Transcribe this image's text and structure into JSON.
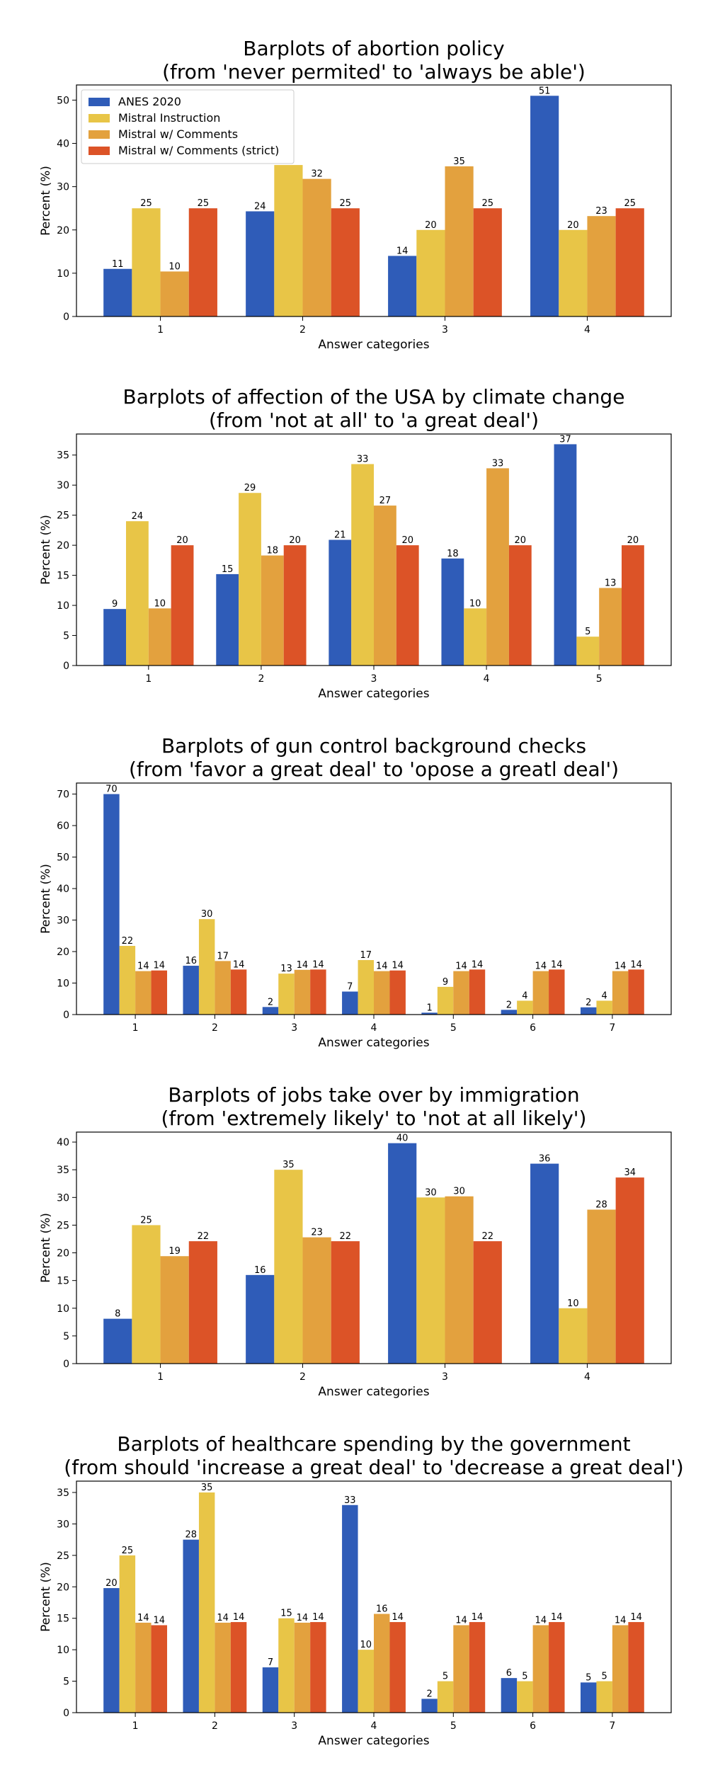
{
  "colors": {
    "ANES 2020": "#2f5cb8",
    "Mistral Instruction": "#e8c547",
    "Mistral w/ Comments": "#e3a13e",
    "Mistral w/ Comments (strict)": "#dc5327"
  },
  "legend_labels": [
    "ANES 2020",
    "Mistral Instruction",
    "Mistral w/ Comments",
    "Mistral w/ Comments (strict)"
  ],
  "chart_data": [
    {
      "type": "bar",
      "title": [
        "Barplots of abortion policy",
        "(from 'never permited' to 'always be able')"
      ],
      "xlabel": "Answer categories",
      "ylabel": "Percent (%)",
      "categories": [
        "1",
        "2",
        "3",
        "4"
      ],
      "ylim": [
        0,
        53.5
      ],
      "yticks": [
        0,
        10,
        20,
        30,
        40,
        50
      ],
      "legend": "upper-left",
      "series": [
        {
          "name": "ANES 2020",
          "values": [
            11,
            24.3,
            14,
            51
          ],
          "labels": [
            "11",
            "24",
            "14",
            "51"
          ]
        },
        {
          "name": "Mistral Instruction",
          "values": [
            25,
            35,
            20,
            20
          ],
          "labels": [
            "25",
            "35",
            "20",
            "20"
          ]
        },
        {
          "name": "Mistral w/ Comments",
          "values": [
            10.4,
            31.8,
            34.7,
            23.2
          ],
          "labels": [
            "10",
            "32",
            "35",
            "23"
          ]
        },
        {
          "name": "Mistral w/ Comments (strict)",
          "values": [
            25,
            25,
            25,
            25
          ],
          "labels": [
            "25",
            "25",
            "25",
            "25"
          ]
        }
      ]
    },
    {
      "type": "bar",
      "title": [
        "Barplots of affection of the USA by climate change",
        "(from 'not at all' to 'a great deal')"
      ],
      "xlabel": "Answer categories",
      "ylabel": "Percent (%)",
      "categories": [
        "1",
        "2",
        "3",
        "4",
        "5"
      ],
      "ylim": [
        0,
        38.5
      ],
      "yticks": [
        0,
        5,
        10,
        15,
        20,
        25,
        30,
        35
      ],
      "series": [
        {
          "name": "ANES 2020",
          "values": [
            9.4,
            15.2,
            20.9,
            17.8,
            36.8
          ],
          "labels": [
            "9",
            "15",
            "21",
            "18",
            "37"
          ]
        },
        {
          "name": "Mistral Instruction",
          "values": [
            24,
            28.7,
            33.5,
            9.5,
            4.8
          ],
          "labels": [
            "24",
            "29",
            "33",
            "10",
            "5"
          ]
        },
        {
          "name": "Mistral w/ Comments",
          "values": [
            9.5,
            18.3,
            26.6,
            32.8,
            12.9
          ],
          "labels": [
            "10",
            "18",
            "27",
            "33",
            "13"
          ]
        },
        {
          "name": "Mistral w/ Comments (strict)",
          "values": [
            20,
            20,
            20,
            20,
            20
          ],
          "labels": [
            "20",
            "20",
            "20",
            "20",
            "20"
          ]
        }
      ]
    },
    {
      "type": "bar",
      "title": [
        "Barplots of gun control background checks",
        "(from 'favor a great deal' to 'opose a greatl deal')"
      ],
      "xlabel": "Answer categories",
      "ylabel": "Percent (%)",
      "categories": [
        "1",
        "2",
        "3",
        "4",
        "5",
        "6",
        "7"
      ],
      "ylim": [
        0,
        73.5
      ],
      "yticks": [
        0,
        10,
        20,
        30,
        40,
        50,
        60,
        70
      ],
      "series": [
        {
          "name": "ANES 2020",
          "values": [
            70,
            15.5,
            2.4,
            7.3,
            0.6,
            1.5,
            2.3
          ],
          "labels": [
            "70",
            "16",
            "2",
            "7",
            "1",
            "2",
            "2"
          ]
        },
        {
          "name": "Mistral Instruction",
          "values": [
            21.8,
            30.3,
            13,
            17.3,
            8.8,
            4.4,
            4.4
          ],
          "labels": [
            "22",
            "30",
            "13",
            "17",
            "9",
            "4",
            "4"
          ]
        },
        {
          "name": "Mistral w/ Comments",
          "values": [
            13.8,
            17,
            14.2,
            13.8,
            13.8,
            13.8,
            13.8
          ],
          "labels": [
            "14",
            "17",
            "14",
            "14",
            "14",
            "14",
            "14"
          ]
        },
        {
          "name": "Mistral w/ Comments (strict)",
          "values": [
            14,
            14.3,
            14.3,
            14,
            14.3,
            14.3,
            14.3
          ],
          "labels": [
            "14",
            "14",
            "14",
            "14",
            "14",
            "14",
            "14"
          ]
        }
      ]
    },
    {
      "type": "bar",
      "title": [
        "Barplots of jobs take over by immigration",
        "(from 'extremely likely' to 'not at all likely')"
      ],
      "xlabel": "Answer categories",
      "ylabel": "Percent (%)",
      "categories": [
        "1",
        "2",
        "3",
        "4"
      ],
      "ylim": [
        0,
        41.8
      ],
      "yticks": [
        0,
        5,
        10,
        15,
        20,
        25,
        30,
        35,
        40
      ],
      "series": [
        {
          "name": "ANES 2020",
          "values": [
            8.1,
            16,
            39.8,
            36.1
          ],
          "labels": [
            "8",
            "16",
            "40",
            "36"
          ]
        },
        {
          "name": "Mistral Instruction",
          "values": [
            25,
            35,
            30,
            10
          ],
          "labels": [
            "25",
            "35",
            "30",
            "10"
          ]
        },
        {
          "name": "Mistral w/ Comments",
          "values": [
            19.4,
            22.8,
            30.2,
            27.8
          ],
          "labels": [
            "19",
            "23",
            "30",
            "28"
          ]
        },
        {
          "name": "Mistral w/ Comments (strict)",
          "values": [
            22.1,
            22.1,
            22.1,
            33.6
          ],
          "labels": [
            "22",
            "22",
            "22",
            "34"
          ]
        }
      ]
    },
    {
      "type": "bar",
      "title": [
        "Barplots of healthcare spending by the government",
        "(from should 'increase a great deal' to 'decrease a great deal')"
      ],
      "xlabel": "Answer categories",
      "ylabel": "Percent (%)",
      "categories": [
        "1",
        "2",
        "3",
        "4",
        "5",
        "6",
        "7"
      ],
      "ylim": [
        0,
        36.8
      ],
      "yticks": [
        0,
        5,
        10,
        15,
        20,
        25,
        30,
        35
      ],
      "series": [
        {
          "name": "ANES 2020",
          "values": [
            19.8,
            27.5,
            7.2,
            33,
            2.2,
            5.5,
            4.8
          ],
          "labels": [
            "20",
            "28",
            "7",
            "33",
            "2",
            "6",
            "5"
          ]
        },
        {
          "name": "Mistral Instruction",
          "values": [
            25,
            35,
            15,
            10,
            5,
            5,
            5
          ],
          "labels": [
            "25",
            "35",
            "15",
            "10",
            "5",
            "5",
            "5"
          ]
        },
        {
          "name": "Mistral w/ Comments",
          "values": [
            14.3,
            14.3,
            14.3,
            15.7,
            13.9,
            13.9,
            13.9
          ],
          "labels": [
            "14",
            "14",
            "14",
            "16",
            "14",
            "14",
            "14"
          ]
        },
        {
          "name": "Mistral w/ Comments (strict)",
          "values": [
            13.9,
            14.4,
            14.4,
            14.4,
            14.4,
            14.4,
            14.4
          ],
          "labels": [
            "14",
            "14",
            "14",
            "14",
            "14",
            "14",
            "14"
          ]
        }
      ]
    }
  ]
}
